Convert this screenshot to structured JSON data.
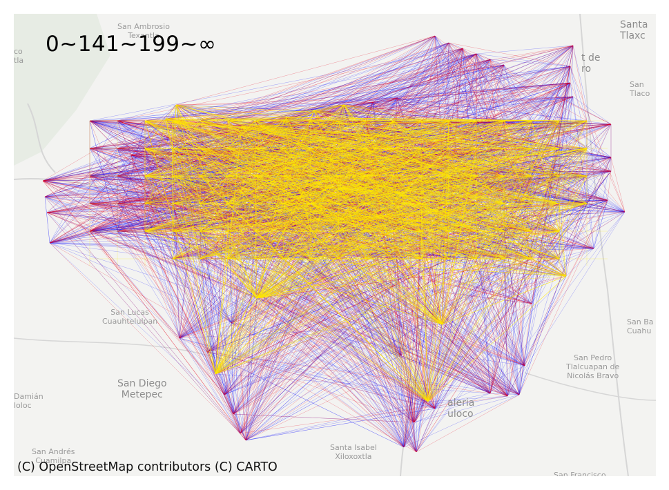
{
  "legend_text": "0~141~199~∞",
  "attribution": "(C) OpenStreetMap contributors (C) CARTO",
  "colors": {
    "background": "#f3f3f1",
    "roads": "#d6d6d6",
    "green": "#dfe8dc",
    "band_low": "#0000ff",
    "band_mid": "#e8001a",
    "band_high": "#ffea00"
  },
  "places": {
    "san_ambrosio": "San Ambrosio\nTexantla",
    "santa_tlaxco": "Santa\nTlaxc",
    "de_tro": "t de\nro",
    "san_tlaco": "San\nTlaco",
    "left_co": "co\ntla",
    "san_lucas": "San Lucas\nCuauhtelulpan",
    "san_diego": "San Diego\nMetepec",
    "san_ba": "San Ba\nCuahu",
    "san_pedro": "San Pedro\nTlalcuapan de\nNicolás Bravo",
    "damian": "Damián\nloloc",
    "santa_isabel": "Santa Isabel\nXiloxoxtla",
    "san_andres": "San Andrés\nCuamilpa",
    "san_francisco": "San Francisco",
    "caleria": "aleria\nuloco"
  }
}
